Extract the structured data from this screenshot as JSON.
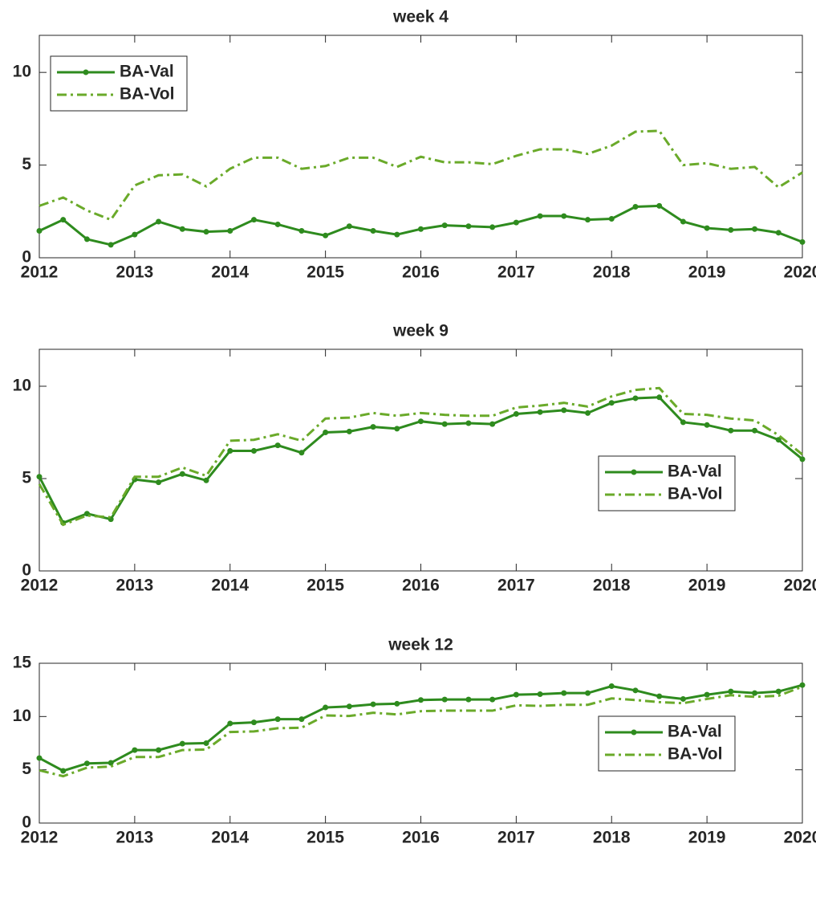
{
  "chart_data": [
    {
      "type": "line",
      "title": "week 4",
      "x": [
        2012,
        2012.25,
        2012.5,
        2012.75,
        2013,
        2013.25,
        2013.5,
        2013.75,
        2014,
        2014.25,
        2014.5,
        2014.75,
        2015,
        2015.25,
        2015.5,
        2015.75,
        2016,
        2016.25,
        2016.5,
        2016.75,
        2017,
        2017.25,
        2017.5,
        2017.75,
        2018,
        2018.25,
        2018.5,
        2018.75,
        2019,
        2019.25,
        2019.5,
        2019.75,
        2020
      ],
      "series": [
        {
          "name": "BA-Val",
          "color": "#2e8b1e",
          "style": "solid",
          "marker": true,
          "values": [
            1.45,
            2.05,
            1.0,
            0.7,
            1.25,
            1.95,
            1.55,
            1.4,
            1.45,
            2.05,
            1.8,
            1.45,
            1.2,
            1.7,
            1.45,
            1.25,
            1.55,
            1.75,
            1.7,
            1.65,
            1.9,
            2.25,
            2.25,
            2.05,
            2.1,
            2.75,
            2.8,
            1.95,
            1.6,
            1.5,
            1.55,
            1.35,
            0.85
          ]
        },
        {
          "name": "BA-Vol",
          "color": "#6aaa2a",
          "style": "dashdot",
          "marker": false,
          "values": [
            2.8,
            3.25,
            2.55,
            2.05,
            3.9,
            4.45,
            4.5,
            3.85,
            4.8,
            5.4,
            5.4,
            4.8,
            4.95,
            5.4,
            5.4,
            4.9,
            5.45,
            5.15,
            5.15,
            5.05,
            5.5,
            5.85,
            5.85,
            5.6,
            6.05,
            6.8,
            6.85,
            5.0,
            5.1,
            4.8,
            4.9,
            3.8,
            4.6
          ]
        }
      ],
      "xlim": [
        2012,
        2020
      ],
      "xticks": [
        2012,
        2013,
        2014,
        2015,
        2016,
        2017,
        2018,
        2019,
        2020
      ],
      "ylim": [
        0,
        12
      ],
      "yticks": [
        0,
        5,
        10
      ],
      "legend": "upper left"
    },
    {
      "type": "line",
      "title": "week 9",
      "x": [
        2012,
        2012.25,
        2012.5,
        2012.75,
        2013,
        2013.25,
        2013.5,
        2013.75,
        2014,
        2014.25,
        2014.5,
        2014.75,
        2015,
        2015.25,
        2015.5,
        2015.75,
        2016,
        2016.25,
        2016.5,
        2016.75,
        2017,
        2017.25,
        2017.5,
        2017.75,
        2018,
        2018.25,
        2018.5,
        2018.75,
        2019,
        2019.25,
        2019.5,
        2019.75,
        2020
      ],
      "series": [
        {
          "name": "BA-Val",
          "color": "#2e8b1e",
          "style": "solid",
          "marker": true,
          "values": [
            5.1,
            2.6,
            3.1,
            2.8,
            4.95,
            4.8,
            5.25,
            4.9,
            6.5,
            6.5,
            6.8,
            6.4,
            7.5,
            7.55,
            7.8,
            7.7,
            8.1,
            7.95,
            8.0,
            7.95,
            8.5,
            8.6,
            8.7,
            8.55,
            9.1,
            9.35,
            9.4,
            8.05,
            7.9,
            7.6,
            7.6,
            7.1,
            6.05
          ]
        },
        {
          "name": "BA-Vol",
          "color": "#6aaa2a",
          "style": "dashdot",
          "marker": false,
          "values": [
            4.7,
            2.5,
            3.0,
            2.9,
            5.1,
            5.1,
            5.6,
            5.15,
            7.05,
            7.1,
            7.4,
            7.05,
            8.25,
            8.3,
            8.55,
            8.4,
            8.55,
            8.45,
            8.4,
            8.4,
            8.85,
            8.95,
            9.1,
            8.9,
            9.45,
            9.8,
            9.9,
            8.5,
            8.45,
            8.25,
            8.15,
            7.35,
            6.3
          ]
        }
      ],
      "xlim": [
        2012,
        2020
      ],
      "xticks": [
        2012,
        2013,
        2014,
        2015,
        2016,
        2017,
        2018,
        2019,
        2020
      ],
      "ylim": [
        0,
        12
      ],
      "yticks": [
        0,
        5,
        10
      ],
      "legend": "center right"
    },
    {
      "type": "line",
      "title": "week 12",
      "x": [
        2012,
        2012.25,
        2012.5,
        2012.75,
        2013,
        2013.25,
        2013.5,
        2013.75,
        2014,
        2014.25,
        2014.5,
        2014.75,
        2015,
        2015.25,
        2015.5,
        2015.75,
        2016,
        2016.25,
        2016.5,
        2016.75,
        2017,
        2017.25,
        2017.5,
        2017.75,
        2018,
        2018.25,
        2018.5,
        2018.75,
        2019,
        2019.25,
        2019.5,
        2019.75,
        2020
      ],
      "series": [
        {
          "name": "BA-Val",
          "color": "#2e8b1e",
          "style": "solid",
          "marker": true,
          "values": [
            6.1,
            4.9,
            5.6,
            5.65,
            6.85,
            6.85,
            7.45,
            7.5,
            9.35,
            9.45,
            9.75,
            9.75,
            10.85,
            10.95,
            11.15,
            11.2,
            11.55,
            11.6,
            11.6,
            11.6,
            12.05,
            12.1,
            12.2,
            12.2,
            12.85,
            12.45,
            11.9,
            11.65,
            12.05,
            12.35,
            12.2,
            12.35,
            12.95
          ]
        },
        {
          "name": "BA-Vol",
          "color": "#6aaa2a",
          "style": "dashdot",
          "marker": false,
          "values": [
            4.95,
            4.4,
            5.2,
            5.3,
            6.2,
            6.2,
            6.85,
            6.9,
            8.55,
            8.6,
            8.9,
            8.95,
            10.1,
            10.05,
            10.35,
            10.2,
            10.5,
            10.55,
            10.55,
            10.55,
            11.05,
            11.0,
            11.1,
            11.1,
            11.7,
            11.55,
            11.35,
            11.25,
            11.65,
            12.0,
            11.85,
            11.95,
            12.8
          ]
        }
      ],
      "xlim": [
        2012,
        2020
      ],
      "xticks": [
        2012,
        2013,
        2014,
        2015,
        2016,
        2017,
        2018,
        2019,
        2020
      ],
      "ylim": [
        0,
        15
      ],
      "yticks": [
        0,
        5,
        10,
        15
      ],
      "legend": "lower right"
    }
  ]
}
